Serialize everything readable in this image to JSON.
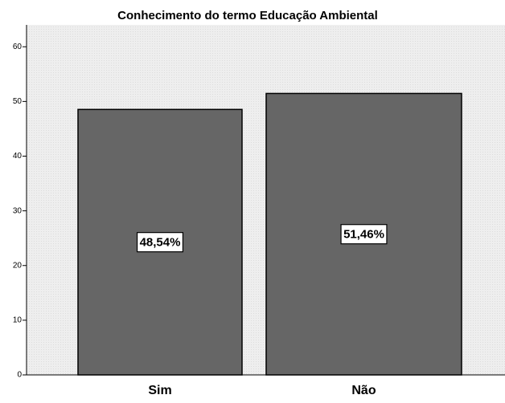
{
  "chart_data": {
    "type": "bar",
    "title": "Conhecimento do termo Educação Ambiental",
    "categories": [
      "Sim",
      "Não"
    ],
    "values": [
      48.54,
      51.46
    ],
    "value_labels": [
      "48,54%",
      "51,46%"
    ],
    "color": "#666666",
    "ylim": [
      0,
      64
    ],
    "yticks": [
      0,
      10,
      20,
      30,
      40,
      50,
      60
    ]
  }
}
